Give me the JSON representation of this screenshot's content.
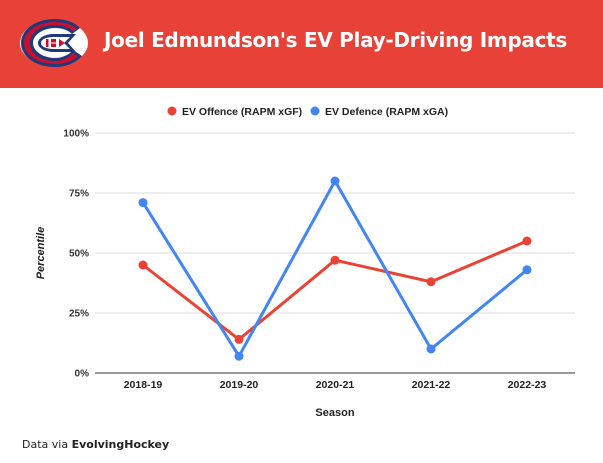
{
  "header": {
    "title": "Joel Edmundson's EV Play-Driving Impacts",
    "logo": "montreal-canadiens-logo",
    "background_color": "#e84238"
  },
  "footer": {
    "prefix": "Data via",
    "source": "EvolvingHockey"
  },
  "chart_data": {
    "type": "line",
    "title": "Joel Edmundson's EV Play-Driving Impacts",
    "xlabel": "Season",
    "ylabel": "Percentile",
    "categories": [
      "2018-19",
      "2019-20",
      "2020-21",
      "2021-22",
      "2022-23"
    ],
    "ylim": [
      0,
      100
    ],
    "yticks": [
      0,
      25,
      50,
      75,
      100
    ],
    "ytick_labels": [
      "0%",
      "25%",
      "50%",
      "75%",
      "100%"
    ],
    "grid": true,
    "legend_position": "top-center",
    "series": [
      {
        "name": "EV Offence (RAPM xGF)",
        "color": "#ea4335",
        "values": [
          45,
          14,
          47,
          38,
          55
        ]
      },
      {
        "name": "EV Defence (RAPM xGA)",
        "color": "#4285f4",
        "values": [
          71,
          7,
          80,
          10,
          43
        ]
      }
    ]
  }
}
